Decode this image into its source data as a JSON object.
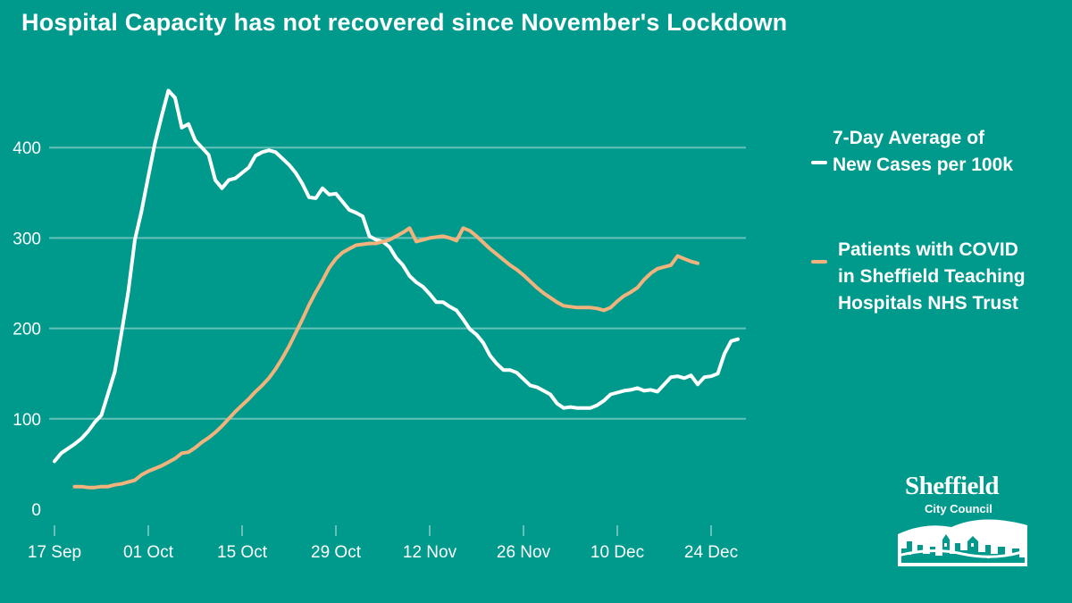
{
  "title": "Hospital Capacity has not recovered since November's Lockdown",
  "legend": {
    "series1_line1": "7-Day Average of",
    "series1_line2": "New Cases per 100k",
    "series2_line1": "Patients with COVID",
    "series2_line2": "in Sheffield Teaching",
    "series2_line3": "Hospitals NHS Trust"
  },
  "logo": {
    "name": "Sheffield",
    "subtitle": "City Council"
  },
  "colors": {
    "background": "#009a8c",
    "cases_line": "#ffffff",
    "patients_line": "#f2b27c",
    "gridline": "#66c2b8"
  },
  "chart_data": {
    "type": "line",
    "title": "Hospital Capacity has not recovered since November's Lockdown",
    "xlabel": "",
    "ylabel": "",
    "ylim": [
      0,
      480
    ],
    "yticks": [
      0,
      100,
      200,
      300,
      400
    ],
    "xticks": [
      {
        "day": 0,
        "label": "17 Sep"
      },
      {
        "day": 14,
        "label": "01 Oct"
      },
      {
        "day": 28,
        "label": "15 Oct"
      },
      {
        "day": 42,
        "label": "29 Oct"
      },
      {
        "day": 56,
        "label": "12 Nov"
      },
      {
        "day": 70,
        "label": "26 Nov"
      },
      {
        "day": 84,
        "label": "10 Dec"
      },
      {
        "day": 98,
        "label": "24 Dec"
      }
    ],
    "grid": "horizontal",
    "legend_position": "right",
    "series": [
      {
        "name": "7-Day Average of New Cases per 100k",
        "color": "#ffffff",
        "points": [
          [
            0,
            53
          ],
          [
            1,
            62
          ],
          [
            2,
            67
          ],
          [
            3,
            72
          ],
          [
            4,
            78
          ],
          [
            5,
            86
          ],
          [
            6,
            96
          ],
          [
            7,
            104
          ],
          [
            8,
            128
          ],
          [
            9,
            152
          ],
          [
            10,
            195
          ],
          [
            11,
            240
          ],
          [
            12,
            298
          ],
          [
            13,
            330
          ],
          [
            14,
            368
          ],
          [
            15,
            405
          ],
          [
            16,
            435
          ],
          [
            17,
            463
          ],
          [
            18,
            455
          ],
          [
            19,
            422
          ],
          [
            20,
            426
          ],
          [
            21,
            408
          ],
          [
            22,
            400
          ],
          [
            23,
            392
          ],
          [
            24,
            364
          ],
          [
            25,
            355
          ],
          [
            26,
            364
          ],
          [
            27,
            366
          ],
          [
            28,
            372
          ],
          [
            29,
            378
          ],
          [
            30,
            391
          ],
          [
            31,
            395
          ],
          [
            32,
            397
          ],
          [
            33,
            395
          ],
          [
            34,
            388
          ],
          [
            35,
            381
          ],
          [
            36,
            372
          ],
          [
            37,
            360
          ],
          [
            38,
            345
          ],
          [
            39,
            344
          ],
          [
            40,
            355
          ],
          [
            41,
            348
          ],
          [
            42,
            349
          ],
          [
            43,
            340
          ],
          [
            44,
            331
          ],
          [
            45,
            328
          ],
          [
            46,
            324
          ],
          [
            47,
            302
          ],
          [
            48,
            298
          ],
          [
            49,
            296
          ],
          [
            50,
            290
          ],
          [
            51,
            278
          ],
          [
            52,
            270
          ],
          [
            53,
            258
          ],
          [
            54,
            251
          ],
          [
            55,
            246
          ],
          [
            56,
            238
          ],
          [
            57,
            229
          ],
          [
            58,
            229
          ],
          [
            59,
            224
          ],
          [
            60,
            220
          ],
          [
            61,
            210
          ],
          [
            62,
            199
          ],
          [
            63,
            193
          ],
          [
            64,
            184
          ],
          [
            65,
            170
          ],
          [
            66,
            161
          ],
          [
            67,
            154
          ],
          [
            68,
            154
          ],
          [
            69,
            151
          ],
          [
            70,
            144
          ],
          [
            71,
            137
          ],
          [
            72,
            135
          ],
          [
            73,
            131
          ],
          [
            74,
            127
          ],
          [
            75,
            117
          ],
          [
            76,
            112
          ],
          [
            77,
            113
          ],
          [
            78,
            112
          ],
          [
            79,
            112
          ],
          [
            80,
            112
          ],
          [
            81,
            115
          ],
          [
            82,
            120
          ],
          [
            83,
            127
          ],
          [
            84,
            129
          ],
          [
            85,
            131
          ],
          [
            86,
            132
          ],
          [
            87,
            134
          ],
          [
            88,
            131
          ],
          [
            89,
            132
          ],
          [
            90,
            130
          ],
          [
            91,
            138
          ],
          [
            92,
            146
          ],
          [
            93,
            147
          ],
          [
            94,
            145
          ],
          [
            95,
            148
          ],
          [
            96,
            138
          ],
          [
            97,
            146
          ],
          [
            98,
            147
          ],
          [
            99,
            150
          ],
          [
            100,
            172
          ],
          [
            101,
            186
          ],
          [
            102,
            188
          ]
        ]
      },
      {
        "name": "Patients with COVID in Sheffield Teaching Hospitals NHS Trust",
        "color": "#f2b27c",
        "points": [
          [
            3,
            25
          ],
          [
            4,
            25
          ],
          [
            5,
            24
          ],
          [
            6,
            24
          ],
          [
            7,
            25
          ],
          [
            8,
            25
          ],
          [
            9,
            27
          ],
          [
            10,
            28
          ],
          [
            11,
            30
          ],
          [
            12,
            32
          ],
          [
            13,
            38
          ],
          [
            14,
            42
          ],
          [
            15,
            45
          ],
          [
            16,
            48
          ],
          [
            17,
            52
          ],
          [
            18,
            56
          ],
          [
            19,
            62
          ],
          [
            20,
            63
          ],
          [
            21,
            68
          ],
          [
            22,
            74
          ],
          [
            23,
            79
          ],
          [
            24,
            85
          ],
          [
            25,
            92
          ],
          [
            26,
            100
          ],
          [
            27,
            108
          ],
          [
            28,
            115
          ],
          [
            29,
            122
          ],
          [
            30,
            130
          ],
          [
            31,
            137
          ],
          [
            32,
            145
          ],
          [
            33,
            155
          ],
          [
            34,
            167
          ],
          [
            35,
            180
          ],
          [
            36,
            195
          ],
          [
            37,
            210
          ],
          [
            38,
            226
          ],
          [
            39,
            240
          ],
          [
            40,
            253
          ],
          [
            41,
            267
          ],
          [
            42,
            277
          ],
          [
            43,
            284
          ],
          [
            44,
            288
          ],
          [
            45,
            292
          ],
          [
            46,
            293
          ],
          [
            47,
            294
          ],
          [
            48,
            294
          ],
          [
            49,
            296
          ],
          [
            50,
            298
          ],
          [
            51,
            302
          ],
          [
            52,
            306
          ],
          [
            53,
            311
          ],
          [
            54,
            296
          ],
          [
            55,
            298
          ],
          [
            56,
            300
          ],
          [
            57,
            301
          ],
          [
            58,
            302
          ],
          [
            59,
            300
          ],
          [
            60,
            297
          ],
          [
            61,
            311
          ],
          [
            62,
            308
          ],
          [
            63,
            302
          ],
          [
            64,
            295
          ],
          [
            65,
            288
          ],
          [
            66,
            282
          ],
          [
            67,
            276
          ],
          [
            68,
            270
          ],
          [
            69,
            265
          ],
          [
            70,
            259
          ],
          [
            71,
            252
          ],
          [
            72,
            245
          ],
          [
            73,
            239
          ],
          [
            74,
            234
          ],
          [
            75,
            229
          ],
          [
            76,
            225
          ],
          [
            77,
            224
          ],
          [
            78,
            223
          ],
          [
            79,
            223
          ],
          [
            80,
            223
          ],
          [
            81,
            222
          ],
          [
            82,
            220
          ],
          [
            83,
            223
          ],
          [
            84,
            230
          ],
          [
            85,
            236
          ],
          [
            86,
            240
          ],
          [
            87,
            245
          ],
          [
            88,
            254
          ],
          [
            89,
            261
          ],
          [
            90,
            266
          ],
          [
            91,
            268
          ],
          [
            92,
            270
          ],
          [
            93,
            280
          ],
          [
            94,
            277
          ],
          [
            95,
            274
          ],
          [
            96,
            272
          ]
        ]
      }
    ]
  }
}
